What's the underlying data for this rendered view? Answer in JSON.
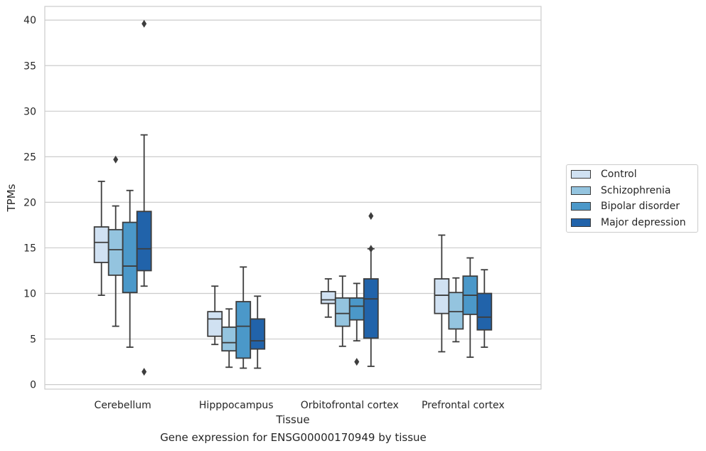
{
  "chart_data": {
    "type": "boxplot",
    "title": "",
    "caption": "Gene expression for ENSG00000170949 by tissue",
    "xlabel": "Tissue",
    "ylabel": "TPMs",
    "ylim": [
      -0.5,
      41.5
    ],
    "yticks": [
      0,
      5,
      10,
      15,
      20,
      25,
      30,
      35,
      40
    ],
    "grid": "horizontal",
    "legend_placement": "right",
    "categories": [
      "Cerebellum",
      "Hipppocampus",
      "Orbitofrontal cortex",
      "Prefrontal cortex"
    ],
    "series": [
      {
        "name": "Control",
        "color": "#d0e1f2",
        "boxes": [
          {
            "whislo": 9.8,
            "q1": 13.4,
            "med": 15.6,
            "q3": 17.3,
            "whishi": 22.3,
            "fliers": []
          },
          {
            "whislo": 4.4,
            "q1": 5.3,
            "med": 7.2,
            "q3": 8.0,
            "whishi": 10.8,
            "fliers": []
          },
          {
            "whislo": 7.4,
            "q1": 8.9,
            "med": 9.3,
            "q3": 10.2,
            "whishi": 11.6,
            "fliers": []
          },
          {
            "whislo": 3.6,
            "q1": 7.8,
            "med": 9.8,
            "q3": 11.6,
            "whishi": 16.4,
            "fliers": []
          }
        ]
      },
      {
        "name": "Schizophrenia",
        "color": "#94c4df",
        "boxes": [
          {
            "whislo": 6.4,
            "q1": 12.0,
            "med": 14.8,
            "q3": 17.0,
            "whishi": 19.6,
            "fliers": [
              24.7
            ]
          },
          {
            "whislo": 1.9,
            "q1": 3.7,
            "med": 4.6,
            "q3": 6.3,
            "whishi": 8.3,
            "fliers": []
          },
          {
            "whislo": 4.2,
            "q1": 6.4,
            "med": 7.8,
            "q3": 9.5,
            "whishi": 11.9,
            "fliers": []
          },
          {
            "whislo": 4.7,
            "q1": 6.1,
            "med": 8.0,
            "q3": 10.1,
            "whishi": 11.7,
            "fliers": []
          }
        ]
      },
      {
        "name": "Bipolar disorder",
        "color": "#4b98c9",
        "boxes": [
          {
            "whislo": 4.1,
            "q1": 10.1,
            "med": 13.0,
            "q3": 17.8,
            "whishi": 21.3,
            "fliers": []
          },
          {
            "whislo": 1.8,
            "q1": 2.9,
            "med": 6.4,
            "q3": 9.1,
            "whishi": 12.9,
            "fliers": []
          },
          {
            "whislo": 4.8,
            "q1": 7.1,
            "med": 8.6,
            "q3": 9.5,
            "whishi": 11.1,
            "fliers": [
              2.5
            ]
          },
          {
            "whislo": 3.0,
            "q1": 7.7,
            "med": 9.8,
            "q3": 11.9,
            "whishi": 13.9,
            "fliers": []
          }
        ]
      },
      {
        "name": "Major depression",
        "color": "#2163aa",
        "boxes": [
          {
            "whislo": 10.8,
            "q1": 12.5,
            "med": 14.9,
            "q3": 19.0,
            "whishi": 27.4,
            "fliers": [
              39.6,
              1.4
            ]
          },
          {
            "whislo": 1.8,
            "q1": 3.9,
            "med": 4.8,
            "q3": 7.2,
            "whishi": 9.7,
            "fliers": []
          },
          {
            "whislo": 2.0,
            "q1": 5.1,
            "med": 9.4,
            "q3": 11.6,
            "whishi": 14.9,
            "fliers": [
              18.5,
              14.9
            ]
          },
          {
            "whislo": 4.1,
            "q1": 6.0,
            "med": 7.4,
            "q3": 10.0,
            "whishi": 12.6,
            "fliers": []
          }
        ]
      }
    ]
  }
}
